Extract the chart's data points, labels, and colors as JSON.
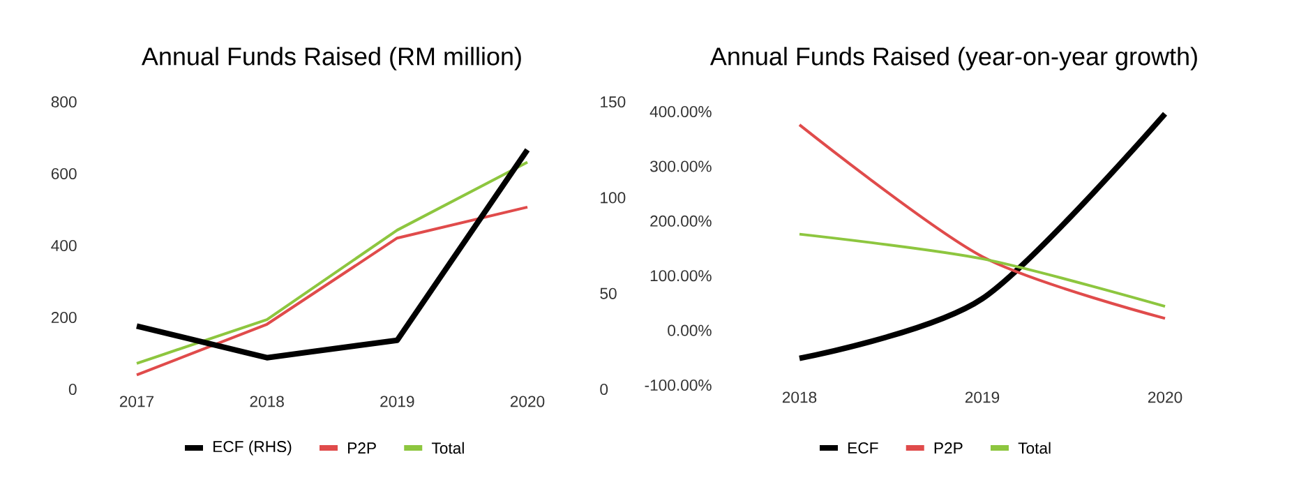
{
  "chart_data": [
    {
      "type": "line",
      "title": "Annual Funds Raised (RM million)",
      "categories": [
        "2017",
        "2018",
        "2019",
        "2020"
      ],
      "legend": "bottom",
      "ylim": [
        0,
        800
      ],
      "yticks": [
        0,
        200,
        400,
        600,
        800
      ],
      "y2lim": [
        0,
        150
      ],
      "y2ticks": [
        0,
        50,
        100,
        150
      ],
      "series": [
        {
          "name": "ECF (RHS)",
          "color": "#000000",
          "axis": "y2",
          "values": [
            33,
            16.5,
            25.6,
            125
          ]
        },
        {
          "name": "P2P",
          "color": "#e04b4b",
          "values": [
            40,
            181,
            421,
            507
          ]
        },
        {
          "name": "Total",
          "color": "#8dc63f",
          "values": [
            72,
            194,
            443,
            632
          ]
        }
      ]
    },
    {
      "type": "line",
      "title": "Annual Funds Raised (year-on-year growth)",
      "categories": [
        "2018",
        "2019",
        "2020"
      ],
      "legend": "bottom",
      "ylim": [
        -100,
        400
      ],
      "yticks": [
        {
          "value": -100,
          "label": "-100.00%"
        },
        {
          "value": 0,
          "label": "0.00%"
        },
        {
          "value": 100,
          "label": "100.00%"
        },
        {
          "value": 200,
          "label": "200.00%"
        },
        {
          "value": 300,
          "label": "300.00%"
        },
        {
          "value": 400,
          "label": "400.00%"
        }
      ],
      "series": [
        {
          "name": "ECF",
          "color": "#000000",
          "values": [
            -51,
            58,
            396
          ]
        },
        {
          "name": "P2P",
          "color": "#e04b4b",
          "values": [
            376,
            135,
            22
          ]
        },
        {
          "name": "Total",
          "color": "#8dc63f",
          "values": [
            176,
            131,
            44
          ]
        }
      ]
    }
  ]
}
